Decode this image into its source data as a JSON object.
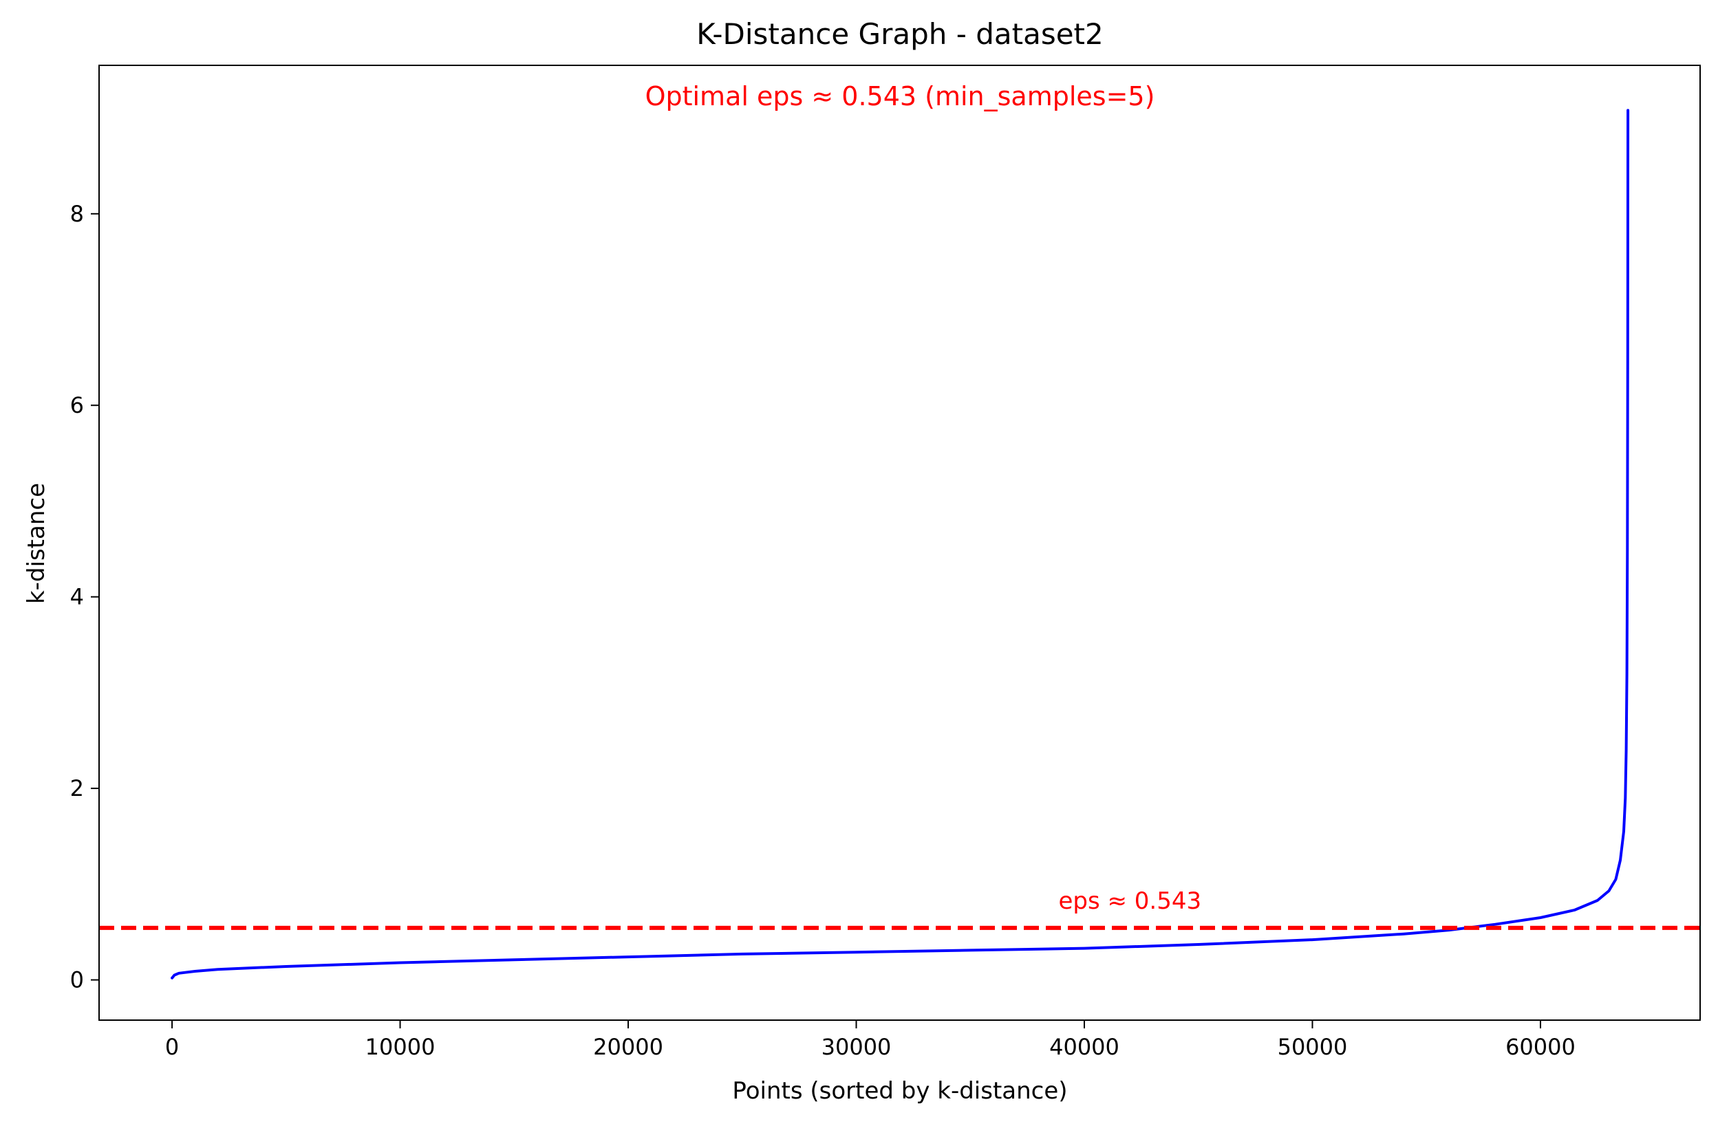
{
  "chart_data": {
    "type": "line",
    "title": "K-Distance Graph - dataset2",
    "xlabel": "Points (sorted by k-distance)",
    "ylabel": "k-distance",
    "xlim": [
      -3200,
      67000
    ],
    "ylim": [
      -0.42,
      9.55
    ],
    "x_ticks": [
      0,
      10000,
      20000,
      30000,
      40000,
      50000,
      60000
    ],
    "x_tick_labels": [
      "0",
      "10000",
      "20000",
      "30000",
      "40000",
      "50000",
      "60000"
    ],
    "y_ticks": [
      0,
      2,
      4,
      6,
      8
    ],
    "y_tick_labels": [
      "0",
      "2",
      "4",
      "6",
      "8"
    ],
    "grid": false,
    "series": [
      {
        "color": "#0000ff",
        "points": [
          [
            0,
            0.02
          ],
          [
            100,
            0.05
          ],
          [
            300,
            0.07
          ],
          [
            1000,
            0.09
          ],
          [
            2000,
            0.11
          ],
          [
            5000,
            0.14
          ],
          [
            10000,
            0.18
          ],
          [
            15000,
            0.21
          ],
          [
            20000,
            0.24
          ],
          [
            25000,
            0.27
          ],
          [
            30000,
            0.29
          ],
          [
            35000,
            0.31
          ],
          [
            40000,
            0.33
          ],
          [
            45000,
            0.37
          ],
          [
            50000,
            0.42
          ],
          [
            54000,
            0.48
          ],
          [
            56000,
            0.52
          ],
          [
            58000,
            0.58
          ],
          [
            60000,
            0.65
          ],
          [
            61500,
            0.73
          ],
          [
            62500,
            0.83
          ],
          [
            63000,
            0.93
          ],
          [
            63300,
            1.05
          ],
          [
            63500,
            1.25
          ],
          [
            63650,
            1.55
          ],
          [
            63720,
            1.9
          ],
          [
            63760,
            2.4
          ],
          [
            63790,
            3.2
          ],
          [
            63810,
            4.5
          ],
          [
            63825,
            6.5
          ],
          [
            63835,
            9.08
          ]
        ]
      }
    ],
    "hline": {
      "y": 0.543,
      "color": "#ff0000",
      "style": "dashed",
      "label": "eps ≈ 0.543",
      "label_x": 42000
    },
    "annotation_top": "Optimal eps ≈ 0.543 (min_samples=5)"
  }
}
